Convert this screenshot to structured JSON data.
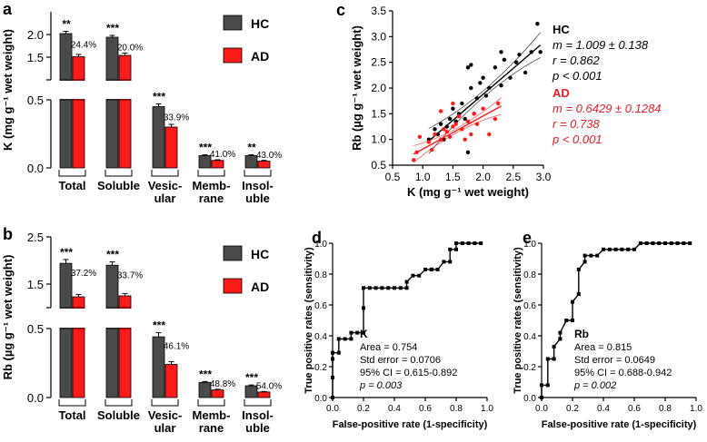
{
  "colors": {
    "hc": "#4a4a4a",
    "ad": "#ff1a1a",
    "axis": "#000000",
    "ad_text": "#e8202a"
  },
  "legend": {
    "hc": "HC",
    "ad": "AD"
  },
  "chart_data": [
    {
      "panel": "a",
      "type": "bar",
      "ylabel": "K (mg g⁻¹ wet weight)",
      "categories": [
        [
          "Total"
        ],
        [
          "Soluble"
        ],
        [
          "Vesic-",
          "ular"
        ],
        [
          "Memb-",
          "rane"
        ],
        [
          "Insol-",
          "uble"
        ]
      ],
      "upper": {
        "range": [
          1.0,
          2.5
        ],
        "ticks": [
          "2.0",
          "1.5"
        ],
        "groups": [
          0,
          1
        ]
      },
      "lower": {
        "range": [
          0,
          0.5
        ],
        "ticks": [
          "0.5",
          "0.0"
        ],
        "groups": [
          2,
          3,
          4
        ]
      },
      "series": [
        {
          "name": "HC",
          "values": [
            2.02,
            1.94,
            0.45,
            0.09,
            0.09
          ],
          "errors": [
            0.05,
            0.04,
            0.02,
            0.006,
            0.006
          ]
        },
        {
          "name": "AD",
          "values": [
            1.51,
            1.54,
            0.3,
            0.055,
            0.05
          ],
          "errors": [
            0.05,
            0.05,
            0.02,
            0.005,
            0.005
          ]
        }
      ],
      "significance": [
        "**",
        "***",
        "***",
        "***",
        "**"
      ],
      "percent": [
        "24.4%",
        "20.0%",
        "33.9%",
        "41.0%",
        "43.0%"
      ]
    },
    {
      "panel": "b",
      "type": "bar",
      "ylabel": "Rb (µg g⁻¹ wet weight)",
      "categories": [
        [
          "Total"
        ],
        [
          "Soluble"
        ],
        [
          "Vesic-",
          "ular"
        ],
        [
          "Memb-",
          "rane"
        ],
        [
          "Insol-",
          "uble"
        ]
      ],
      "upper": {
        "range": [
          1.0,
          2.5
        ],
        "ticks": [
          "2.5",
          "1.5"
        ],
        "groups": [
          0,
          1
        ]
      },
      "lower": {
        "range": [
          0,
          0.5
        ],
        "ticks": [
          "0.5",
          "0.0"
        ],
        "groups": [
          2,
          3,
          4
        ]
      },
      "series": [
        {
          "name": "HC",
          "values": [
            1.94,
            1.9,
            0.44,
            0.11,
            0.085
          ],
          "errors": [
            0.08,
            0.07,
            0.03,
            0.006,
            0.006
          ]
        },
        {
          "name": "AD",
          "values": [
            1.23,
            1.25,
            0.24,
            0.055,
            0.04
          ],
          "errors": [
            0.05,
            0.05,
            0.02,
            0.005,
            0.004
          ]
        }
      ],
      "significance": [
        "***",
        "***",
        "***",
        "***",
        "***"
      ],
      "percent": [
        "37.2%",
        "33.7%",
        "46.1%",
        "48.8%",
        "54.0%"
      ]
    },
    {
      "panel": "c",
      "type": "scatter",
      "xlabel": "K (mg g⁻¹ wet weight)",
      "ylabel": "Rb (µg g⁻¹ wet weight)",
      "xlim": [
        0.5,
        3.0
      ],
      "ylim": [
        0.5,
        3.5
      ],
      "xticks": [
        "0.5",
        "1.0",
        "1.5",
        "2.0",
        "2.5",
        "3.0"
      ],
      "yticks": [
        "0.5",
        "1.0",
        "1.5",
        "2.0",
        "2.5",
        "3.0",
        "3.5"
      ],
      "series": [
        {
          "name": "HC",
          "slope": 1.009,
          "intercept": -0.14,
          "x_range": [
            1.1,
            2.95
          ],
          "band": 0.18,
          "points": [
            [
              1.1,
              1.0
            ],
            [
              1.2,
              1.2
            ],
            [
              1.25,
              1.1
            ],
            [
              1.3,
              1.3
            ],
            [
              1.35,
              1.0
            ],
            [
              1.4,
              1.25
            ],
            [
              1.45,
              1.4
            ],
            [
              1.5,
              1.6
            ],
            [
              1.55,
              1.35
            ],
            [
              1.6,
              1.5
            ],
            [
              1.65,
              1.7
            ],
            [
              1.7,
              1.4
            ],
            [
              1.75,
              0.75
            ],
            [
              1.8,
              2.0
            ],
            [
              1.85,
              1.5
            ],
            [
              1.9,
              1.8
            ],
            [
              1.95,
              2.1
            ],
            [
              2.0,
              2.2
            ],
            [
              2.05,
              1.85
            ],
            [
              2.1,
              2.0
            ],
            [
              2.2,
              2.4
            ],
            [
              2.3,
              2.05
            ],
            [
              2.35,
              2.55
            ],
            [
              2.45,
              2.2
            ],
            [
              2.55,
              2.5
            ],
            [
              2.6,
              2.65
            ],
            [
              2.7,
              2.3
            ],
            [
              2.8,
              2.7
            ],
            [
              2.9,
              3.25
            ],
            [
              2.95,
              2.7
            ],
            [
              1.75,
              2.4
            ],
            [
              1.8,
              2.45
            ],
            [
              2.3,
              2.7
            ]
          ],
          "labels": [
            "HC",
            "m = 1.009 ± 0.138",
            "r = 0.862",
            "p < 0.001"
          ]
        },
        {
          "name": "AD",
          "slope": 0.6429,
          "intercept": 0.17,
          "x_range": [
            0.85,
            2.3
          ],
          "band": 0.12,
          "points": [
            [
              0.85,
              0.6
            ],
            [
              0.9,
              0.75
            ],
            [
              0.95,
              1.05
            ],
            [
              1.1,
              0.95
            ],
            [
              1.15,
              0.8
            ],
            [
              1.2,
              1.1
            ],
            [
              1.3,
              1.0
            ],
            [
              1.35,
              1.2
            ],
            [
              1.4,
              1.15
            ],
            [
              1.45,
              1.05
            ],
            [
              1.5,
              1.25
            ],
            [
              1.55,
              1.3
            ],
            [
              1.6,
              1.45
            ],
            [
              1.65,
              1.2
            ],
            [
              1.7,
              1.0
            ],
            [
              1.75,
              1.35
            ],
            [
              1.8,
              1.1
            ],
            [
              1.85,
              1.5
            ],
            [
              1.9,
              1.3
            ],
            [
              2.0,
              1.6
            ],
            [
              2.1,
              1.1
            ],
            [
              2.2,
              1.4
            ],
            [
              2.25,
              1.7
            ],
            [
              1.5,
              1.7
            ],
            [
              1.3,
              1.55
            ]
          ],
          "labels": [
            "AD",
            "m = 0.6429 ± 0.1284",
            "r = 0.738",
            "p < 0.001"
          ]
        }
      ]
    },
    {
      "panel": "d",
      "type": "line",
      "xlabel": "False-positive rate (1-specificity)",
      "ylabel": "True positive rates (sensitivity)",
      "xlim": [
        0,
        1
      ],
      "ylim": [
        0,
        1
      ],
      "xticks": [
        "0.0",
        "0.2",
        "0.4",
        "0.6",
        "0.8",
        "1.0"
      ],
      "yticks": [
        "0.0",
        "0.2",
        "0.4",
        "0.6",
        "0.8",
        "1.0"
      ],
      "x": [
        0.0,
        0.0,
        0.0,
        0.0,
        0.04,
        0.04,
        0.08,
        0.12,
        0.12,
        0.16,
        0.2,
        0.2,
        0.2,
        0.24,
        0.28,
        0.32,
        0.36,
        0.4,
        0.44,
        0.48,
        0.48,
        0.52,
        0.56,
        0.6,
        0.64,
        0.64,
        0.68,
        0.72,
        0.76,
        0.76,
        0.8,
        0.8,
        0.84,
        0.88,
        0.92,
        0.96
      ],
      "y": [
        0.0,
        0.13,
        0.25,
        0.29,
        0.29,
        0.38,
        0.38,
        0.38,
        0.42,
        0.42,
        0.42,
        0.58,
        0.71,
        0.71,
        0.71,
        0.71,
        0.71,
        0.71,
        0.71,
        0.71,
        0.75,
        0.79,
        0.79,
        0.83,
        0.83,
        0.83,
        0.83,
        0.88,
        0.88,
        0.96,
        0.96,
        1.0,
        1.0,
        1.0,
        1.0,
        1.0
      ],
      "stats": {
        "name": "K",
        "area": "Area = 0.754",
        "se": "Std error = 0.0706",
        "ci": "95% CI = 0.615-0.892",
        "p": "p = 0.003"
      }
    },
    {
      "panel": "e",
      "type": "line",
      "xlabel": "False-positive rate (1-specificity)",
      "ylabel": "True positive rates (sensitivity)",
      "xlim": [
        0,
        1
      ],
      "ylim": [
        0,
        1
      ],
      "xticks": [
        "0.0",
        "0.2",
        "0.4",
        "0.6",
        "0.8",
        "1.0"
      ],
      "yticks": [
        "0.0",
        "0.2",
        "0.4",
        "0.6",
        "0.8",
        "1.0"
      ],
      "x": [
        0.0,
        0.0,
        0.04,
        0.04,
        0.08,
        0.08,
        0.12,
        0.12,
        0.16,
        0.2,
        0.2,
        0.24,
        0.24,
        0.28,
        0.28,
        0.32,
        0.36,
        0.4,
        0.44,
        0.48,
        0.52,
        0.56,
        0.6,
        0.64,
        0.68,
        0.72,
        0.76,
        0.8,
        0.84,
        0.88,
        0.92,
        0.96
      ],
      "y": [
        0.0,
        0.08,
        0.08,
        0.25,
        0.25,
        0.33,
        0.38,
        0.42,
        0.5,
        0.5,
        0.62,
        0.67,
        0.83,
        0.88,
        0.92,
        0.92,
        0.92,
        0.96,
        0.96,
        0.96,
        0.96,
        0.96,
        0.96,
        1.0,
        1.0,
        1.0,
        1.0,
        1.0,
        1.0,
        1.0,
        1.0,
        1.0
      ],
      "stats": {
        "name": "Rb",
        "area": "Area = 0.815",
        "se": "Std error = 0.0649",
        "ci": "95% CI = 0.688-0.942",
        "p": "p = 0.002"
      }
    }
  ]
}
